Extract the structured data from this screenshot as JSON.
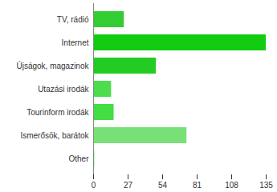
{
  "chart_data": {
    "type": "bar",
    "orientation": "horizontal",
    "categories": [
      "TV, rádió",
      "Internet",
      "Újságok, magazinok",
      "Utazási irodák",
      "Tourinform irodák",
      "Ismerősök, barátok",
      "Other"
    ],
    "values": [
      24,
      135,
      49,
      14,
      16,
      73,
      1
    ],
    "colors": [
      "#33cc33",
      "#11cc11",
      "#22cc22",
      "#4cdd4c",
      "#44dd44",
      "#77e077",
      "#88ee88"
    ],
    "xlim": [
      0,
      135
    ],
    "xticks": [
      0,
      27,
      54,
      81,
      108,
      135
    ],
    "grid": false
  }
}
